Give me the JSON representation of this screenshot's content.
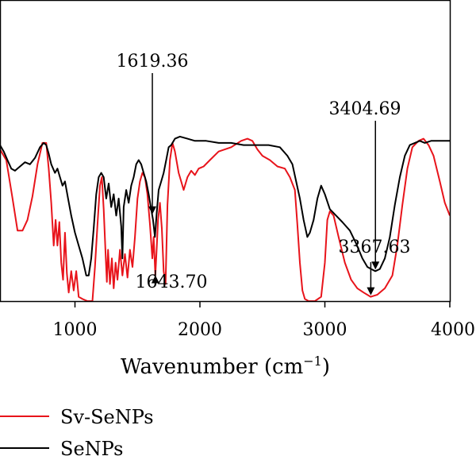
{
  "chart_data": {
    "type": "line",
    "xlabel": "Wavenumber (cm",
    "xlabel_sup": "−1",
    "xlabel_end": ")",
    "xlim": [
      400,
      4000
    ],
    "ylim": [
      0,
      100
    ],
    "x_ticks": [
      {
        "value": 1000,
        "label": "1000"
      },
      {
        "value": 2000,
        "label": "2000"
      },
      {
        "value": 3000,
        "label": "3000"
      },
      {
        "value": 4000,
        "label": "4000"
      }
    ],
    "legend_position": "bottom-left",
    "series": [
      {
        "name": "Sv-SeNPs",
        "color": "#e8141b",
        "points": [
          [
            400,
            71
          ],
          [
            450,
            66
          ],
          [
            500,
            48
          ],
          [
            540,
            33
          ],
          [
            580,
            33
          ],
          [
            620,
            38
          ],
          [
            660,
            49
          ],
          [
            700,
            64
          ],
          [
            740,
            74
          ],
          [
            770,
            74
          ],
          [
            790,
            62
          ],
          [
            810,
            46
          ],
          [
            830,
            26
          ],
          [
            845,
            38
          ],
          [
            860,
            26
          ],
          [
            875,
            37
          ],
          [
            890,
            18
          ],
          [
            905,
            10
          ],
          [
            920,
            32
          ],
          [
            935,
            13
          ],
          [
            950,
            4
          ],
          [
            970,
            14
          ],
          [
            990,
            5
          ],
          [
            1010,
            14
          ],
          [
            1030,
            2
          ],
          [
            1060,
            1
          ],
          [
            1100,
            0
          ],
          [
            1140,
            0
          ],
          [
            1160,
            16
          ],
          [
            1180,
            36
          ],
          [
            1200,
            54
          ],
          [
            1215,
            58
          ],
          [
            1230,
            43
          ],
          [
            1245,
            22
          ],
          [
            1255,
            9
          ],
          [
            1265,
            24
          ],
          [
            1280,
            8
          ],
          [
            1295,
            20
          ],
          [
            1310,
            6
          ],
          [
            1325,
            18
          ],
          [
            1340,
            10
          ],
          [
            1360,
            24
          ],
          [
            1380,
            12
          ],
          [
            1400,
            22
          ],
          [
            1420,
            11
          ],
          [
            1440,
            24
          ],
          [
            1460,
            16
          ],
          [
            1480,
            30
          ],
          [
            1500,
            48
          ],
          [
            1520,
            56
          ],
          [
            1540,
            60
          ],
          [
            1560,
            58
          ],
          [
            1580,
            50
          ],
          [
            1600,
            36
          ],
          [
            1619,
            20
          ],
          [
            1630,
            30
          ],
          [
            1643,
            12
          ],
          [
            1655,
            26
          ],
          [
            1665,
            38
          ],
          [
            1680,
            46
          ],
          [
            1695,
            34
          ],
          [
            1710,
            14
          ],
          [
            1725,
            8
          ],
          [
            1740,
            45
          ],
          [
            1760,
            66
          ],
          [
            1780,
            74
          ],
          [
            1800,
            70
          ],
          [
            1830,
            60
          ],
          [
            1850,
            56
          ],
          [
            1870,
            52
          ],
          [
            1900,
            58
          ],
          [
            1930,
            61
          ],
          [
            1960,
            59
          ],
          [
            1990,
            62
          ],
          [
            2030,
            63
          ],
          [
            2080,
            66
          ],
          [
            2150,
            70
          ],
          [
            2250,
            72
          ],
          [
            2330,
            75
          ],
          [
            2380,
            76
          ],
          [
            2420,
            75
          ],
          [
            2460,
            71
          ],
          [
            2500,
            68
          ],
          [
            2560,
            66
          ],
          [
            2620,
            63
          ],
          [
            2680,
            62
          ],
          [
            2720,
            58
          ],
          [
            2760,
            52
          ],
          [
            2780,
            36
          ],
          [
            2800,
            18
          ],
          [
            2820,
            5
          ],
          [
            2840,
            1
          ],
          [
            2870,
            0
          ],
          [
            2920,
            0
          ],
          [
            2970,
            2
          ],
          [
            3000,
            18
          ],
          [
            3020,
            38
          ],
          [
            3040,
            42
          ],
          [
            3070,
            40
          ],
          [
            3110,
            30
          ],
          [
            3160,
            18
          ],
          [
            3210,
            10
          ],
          [
            3260,
            6
          ],
          [
            3310,
            4
          ],
          [
            3367,
            2
          ],
          [
            3420,
            3
          ],
          [
            3480,
            6
          ],
          [
            3540,
            12
          ],
          [
            3580,
            26
          ],
          [
            3620,
            45
          ],
          [
            3660,
            62
          ],
          [
            3700,
            72
          ],
          [
            3750,
            75
          ],
          [
            3790,
            76
          ],
          [
            3830,
            73
          ],
          [
            3870,
            68
          ],
          [
            3920,
            56
          ],
          [
            3960,
            46
          ],
          [
            4000,
            40
          ]
        ]
      },
      {
        "name": "SeNPs",
        "color": "#000000",
        "points": [
          [
            400,
            73
          ],
          [
            430,
            70
          ],
          [
            460,
            66
          ],
          [
            490,
            62
          ],
          [
            520,
            61
          ],
          [
            560,
            63
          ],
          [
            600,
            65
          ],
          [
            640,
            64
          ],
          [
            680,
            67
          ],
          [
            720,
            72
          ],
          [
            750,
            74
          ],
          [
            770,
            73
          ],
          [
            790,
            69
          ],
          [
            810,
            64
          ],
          [
            840,
            60
          ],
          [
            860,
            62
          ],
          [
            880,
            58
          ],
          [
            900,
            54
          ],
          [
            920,
            56
          ],
          [
            945,
            48
          ],
          [
            970,
            40
          ],
          [
            1000,
            32
          ],
          [
            1030,
            26
          ],
          [
            1060,
            20
          ],
          [
            1090,
            12
          ],
          [
            1110,
            12
          ],
          [
            1130,
            20
          ],
          [
            1150,
            34
          ],
          [
            1170,
            50
          ],
          [
            1190,
            58
          ],
          [
            1210,
            60
          ],
          [
            1230,
            58
          ],
          [
            1250,
            48
          ],
          [
            1270,
            55
          ],
          [
            1290,
            44
          ],
          [
            1310,
            50
          ],
          [
            1330,
            40
          ],
          [
            1350,
            48
          ],
          [
            1370,
            35
          ],
          [
            1380,
            20
          ],
          [
            1390,
            44
          ],
          [
            1410,
            52
          ],
          [
            1430,
            46
          ],
          [
            1450,
            54
          ],
          [
            1470,
            58
          ],
          [
            1490,
            64
          ],
          [
            1510,
            66
          ],
          [
            1530,
            64
          ],
          [
            1550,
            60
          ],
          [
            1570,
            56
          ],
          [
            1590,
            50
          ],
          [
            1610,
            43
          ],
          [
            1625,
            38
          ],
          [
            1640,
            30
          ],
          [
            1655,
            42
          ],
          [
            1670,
            52
          ],
          [
            1690,
            56
          ],
          [
            1710,
            60
          ],
          [
            1730,
            66
          ],
          [
            1750,
            72
          ],
          [
            1770,
            73
          ],
          [
            1800,
            76
          ],
          [
            1840,
            77
          ],
          [
            1900,
            76
          ],
          [
            1960,
            75
          ],
          [
            2050,
            75
          ],
          [
            2150,
            74
          ],
          [
            2250,
            74
          ],
          [
            2350,
            73
          ],
          [
            2450,
            73
          ],
          [
            2550,
            73
          ],
          [
            2640,
            72
          ],
          [
            2700,
            68
          ],
          [
            2740,
            64
          ],
          [
            2770,
            56
          ],
          [
            2800,
            48
          ],
          [
            2830,
            38
          ],
          [
            2860,
            30
          ],
          [
            2880,
            32
          ],
          [
            2910,
            38
          ],
          [
            2940,
            48
          ],
          [
            2970,
            54
          ],
          [
            3000,
            50
          ],
          [
            3040,
            43
          ],
          [
            3090,
            40
          ],
          [
            3140,
            37
          ],
          [
            3200,
            33
          ],
          [
            3250,
            27
          ],
          [
            3300,
            20
          ],
          [
            3340,
            16
          ],
          [
            3370,
            15
          ],
          [
            3404,
            14
          ],
          [
            3440,
            15
          ],
          [
            3480,
            20
          ],
          [
            3520,
            30
          ],
          [
            3560,
            45
          ],
          [
            3600,
            58
          ],
          [
            3640,
            68
          ],
          [
            3680,
            73
          ],
          [
            3720,
            74
          ],
          [
            3760,
            75
          ],
          [
            3800,
            74
          ],
          [
            3850,
            75
          ],
          [
            3900,
            75
          ],
          [
            3950,
            75
          ],
          [
            4000,
            75
          ]
        ]
      }
    ],
    "annotations": [
      {
        "label": "1619.36",
        "series": "SeNPs",
        "x": 1619.36
      },
      {
        "label": "1643.70",
        "series": "Sv-SeNPs",
        "x": 1643.7
      },
      {
        "label": "3404.69",
        "series": "SeNPs",
        "x": 3404.69
      },
      {
        "label": "3367.63",
        "series": "Sv-SeNPs",
        "x": 3367.63
      }
    ]
  }
}
